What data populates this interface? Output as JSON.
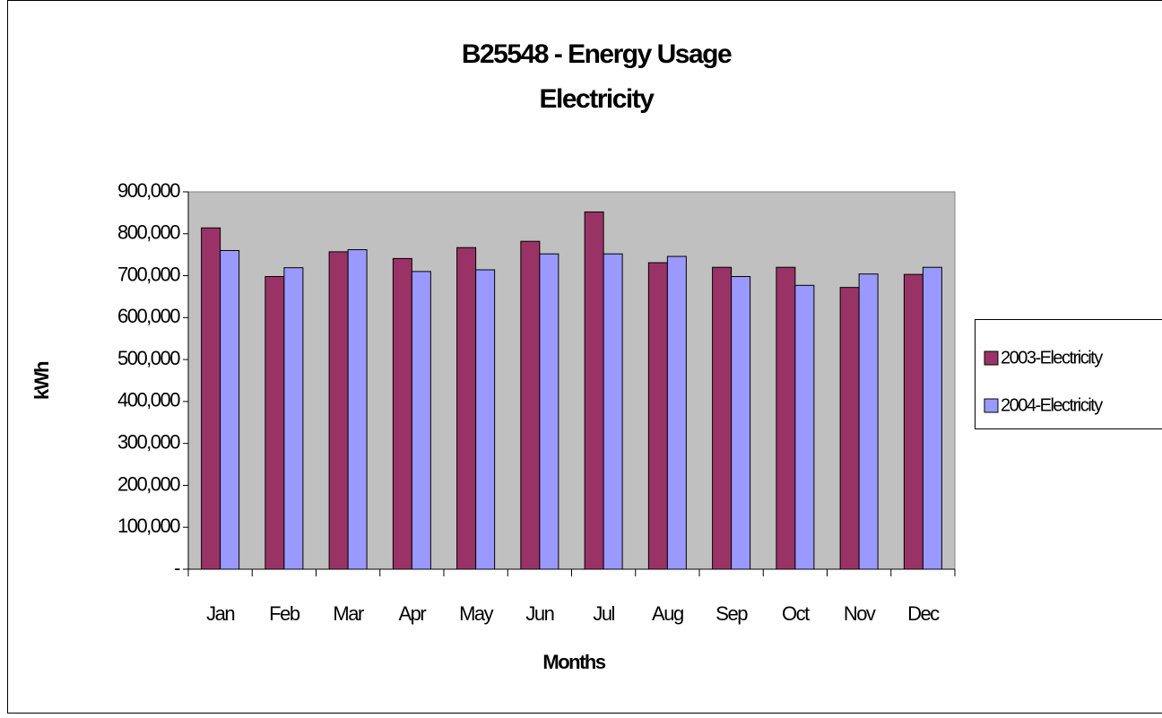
{
  "chart_data": {
    "type": "bar",
    "title": "B25548 - Energy Usage",
    "subtitle": "Electricity",
    "x_label": "Months",
    "y_label": "kWh",
    "categories": [
      "Jan",
      "Feb",
      "Mar",
      "Apr",
      "May",
      "Jun",
      "Jul",
      "Aug",
      "Sep",
      "Oct",
      "Nov",
      "Dec"
    ],
    "series": [
      {
        "name": "2003-Electricity",
        "color": "#993366",
        "values": [
          814000,
          698000,
          757000,
          741000,
          767000,
          782000,
          852000,
          731000,
          720000,
          720000,
          672000,
          703000
        ]
      },
      {
        "name": "2004-Electricity",
        "color": "#9999ff",
        "values": [
          760000,
          719000,
          762000,
          710000,
          714000,
          752000,
          752000,
          746000,
          698000,
          677000,
          704000,
          720000
        ]
      }
    ],
    "ylim": [
      0,
      900000
    ],
    "yticks": [
      {
        "value": 0,
        "label": "-"
      },
      {
        "value": 100000,
        "label": "100,000"
      },
      {
        "value": 200000,
        "label": "200,000"
      },
      {
        "value": 300000,
        "label": "300,000"
      },
      {
        "value": 400000,
        "label": "400,000"
      },
      {
        "value": 500000,
        "label": "500,000"
      },
      {
        "value": 600000,
        "label": "600,000"
      },
      {
        "value": 700000,
        "label": "700,000"
      },
      {
        "value": 800000,
        "label": "800,000"
      },
      {
        "value": 900000,
        "label": "900,000"
      }
    ],
    "plot_background": "#c0c0c0",
    "legend": "right"
  }
}
